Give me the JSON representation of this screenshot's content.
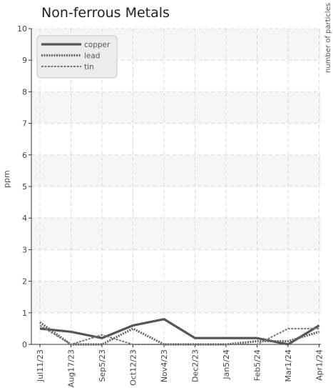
{
  "chart_data": {
    "type": "line",
    "title": "Non-ferrous Metals",
    "ylabel": "ppm",
    "y2label": "number of particles",
    "ylim": [
      0,
      10
    ],
    "yticks": [
      "0",
      "1",
      "2",
      "3",
      "4",
      "5",
      "6",
      "7",
      "8",
      "9",
      "10"
    ],
    "categories": [
      "Jul11/23",
      "Aug17/23",
      "Sep5/23",
      "Oct12/23",
      "Nov4/23",
      "Dec2/23",
      "Jan5/24",
      "Feb5/24",
      "Mar1/24",
      "Apr1/24"
    ],
    "grid": true,
    "legend_position": "top-left",
    "series": [
      {
        "name": "copper",
        "values": [
          0.5,
          0.4,
          0.2,
          0.6,
          0.8,
          0.2,
          0.2,
          0.2,
          0.0,
          0.6
        ],
        "color": "#555555",
        "style": "solid"
      },
      {
        "name": "lead",
        "values": [
          0.7,
          0.0,
          0.0,
          0.5,
          0.0,
          0.0,
          0.0,
          0.1,
          0.1,
          0.4
        ],
        "color": "#666666",
        "style": "dotted"
      },
      {
        "name": "tin",
        "values": [
          0.6,
          0.0,
          0.3,
          0.0,
          0.0,
          0.0,
          0.0,
          0.0,
          0.5,
          0.5
        ],
        "color": "#777777",
        "style": "dashed"
      }
    ]
  }
}
